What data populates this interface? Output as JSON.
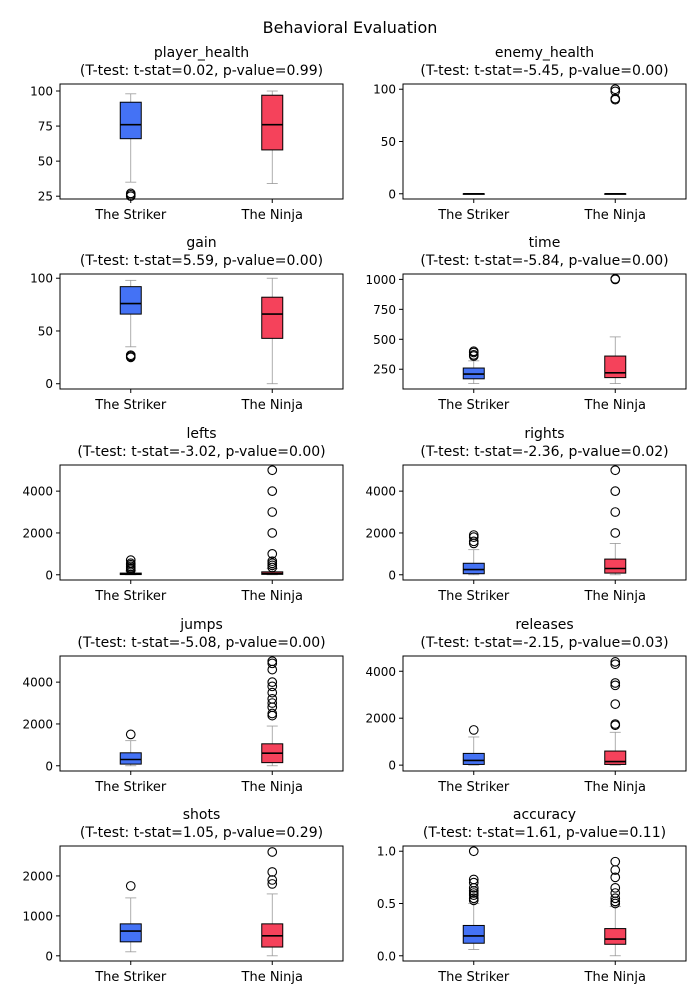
{
  "suptitle": "Behavioral Evaluation",
  "colors": {
    "striker": "#4472f5",
    "ninja": "#f5425b",
    "median": "#000000",
    "whisker": "#999999"
  },
  "chart_data": [
    {
      "type": "box",
      "title": "player_health",
      "subtitle": "(T-test: t-stat=0.02, p-value=0.99)",
      "categories": [
        "The Striker",
        "The Ninja"
      ],
      "ylim": [
        23,
        105
      ],
      "yticks": [
        25,
        50,
        75,
        100
      ],
      "boxes": [
        {
          "name": "The Striker",
          "whislo": 35,
          "q1": 66,
          "med": 76,
          "q3": 92,
          "whishi": 98,
          "fliers": [
            25,
            26,
            27
          ]
        },
        {
          "name": "The Ninja",
          "whislo": 34,
          "q1": 58,
          "med": 76,
          "q3": 97,
          "whishi": 100,
          "fliers": []
        }
      ]
    },
    {
      "type": "box",
      "title": "enemy_health",
      "subtitle": "(T-test: t-stat=-5.45, p-value=0.00)",
      "categories": [
        "The Striker",
        "The Ninja"
      ],
      "ylim": [
        -5,
        105
      ],
      "yticks": [
        0,
        50,
        100
      ],
      "boxes": [
        {
          "name": "The Striker",
          "whislo": 0,
          "q1": 0,
          "med": 0,
          "q3": 0,
          "whishi": 0,
          "fliers": []
        },
        {
          "name": "The Ninja",
          "whislo": 0,
          "q1": 0,
          "med": 0,
          "q3": 0,
          "whishi": 0,
          "fliers": [
            90,
            91,
            98,
            100
          ]
        }
      ]
    },
    {
      "type": "box",
      "title": "gain",
      "subtitle": "(T-test: t-stat=5.59, p-value=0.00)",
      "categories": [
        "The Striker",
        "The Ninja"
      ],
      "ylim": [
        -5,
        104
      ],
      "yticks": [
        0,
        50,
        100
      ],
      "boxes": [
        {
          "name": "The Striker",
          "whislo": 35,
          "q1": 66,
          "med": 76,
          "q3": 92,
          "whishi": 98,
          "fliers": [
            25,
            26,
            27
          ]
        },
        {
          "name": "The Ninja",
          "whislo": 0,
          "q1": 43,
          "med": 66,
          "q3": 82,
          "whishi": 100,
          "fliers": []
        }
      ]
    },
    {
      "type": "box",
      "title": "time",
      "subtitle": "(T-test: t-stat=-5.84, p-value=0.00)",
      "categories": [
        "The Striker",
        "The Ninja"
      ],
      "ylim": [
        85,
        1045
      ],
      "yticks": [
        250,
        500,
        750,
        1000
      ],
      "boxes": [
        {
          "name": "The Striker",
          "whislo": 130,
          "q1": 170,
          "med": 210,
          "q3": 260,
          "whishi": 320,
          "fliers": [
            360,
            370,
            390,
            400
          ]
        },
        {
          "name": "The Ninja",
          "whislo": 130,
          "q1": 180,
          "med": 220,
          "q3": 360,
          "whishi": 520,
          "fliers": [
            1000,
            1005
          ]
        }
      ]
    },
    {
      "type": "box",
      "title": "lefts",
      "subtitle": "(T-test: t-stat=-3.02, p-value=0.00)",
      "categories": [
        "The Striker",
        "The Ninja"
      ],
      "ylim": [
        -250,
        5250
      ],
      "yticks": [
        0,
        2000,
        4000
      ],
      "boxes": [
        {
          "name": "The Striker",
          "whislo": 0,
          "q1": 10,
          "med": 40,
          "q3": 80,
          "whishi": 180,
          "fliers": [
            220,
            280,
            330,
            400,
            480,
            550,
            700
          ]
        },
        {
          "name": "The Ninja",
          "whislo": 0,
          "q1": 20,
          "med": 60,
          "q3": 140,
          "whishi": 300,
          "fliers": [
            350,
            450,
            550,
            650,
            1000,
            2000,
            3000,
            4000,
            5000
          ]
        }
      ]
    },
    {
      "type": "box",
      "title": "rights",
      "subtitle": "(T-test: t-stat=-2.36, p-value=0.02)",
      "categories": [
        "The Striker",
        "The Ninja"
      ],
      "ylim": [
        -250,
        5250
      ],
      "yticks": [
        0,
        2000,
        4000
      ],
      "boxes": [
        {
          "name": "The Striker",
          "whislo": 0,
          "q1": 50,
          "med": 250,
          "q3": 550,
          "whishi": 1200,
          "fliers": [
            1500,
            1600,
            1800,
            1900
          ]
        },
        {
          "name": "The Ninja",
          "whislo": 0,
          "q1": 80,
          "med": 300,
          "q3": 750,
          "whishi": 1500,
          "fliers": [
            2000,
            3000,
            4000,
            5000
          ]
        }
      ]
    },
    {
      "type": "box",
      "title": "jumps",
      "subtitle": "(T-test: t-stat=-5.08, p-value=0.00)",
      "categories": [
        "The Striker",
        "The Ninja"
      ],
      "ylim": [
        -250,
        5250
      ],
      "yticks": [
        0,
        2000,
        4000
      ],
      "boxes": [
        {
          "name": "The Striker",
          "whislo": 0,
          "q1": 80,
          "med": 300,
          "q3": 620,
          "whishi": 1200,
          "fliers": [
            1500
          ]
        },
        {
          "name": "The Ninja",
          "whislo": 0,
          "q1": 150,
          "med": 600,
          "q3": 1050,
          "whishi": 1900,
          "fliers": [
            2400,
            2500,
            2800,
            3000,
            3200,
            3500,
            3800,
            4000,
            4600,
            4900,
            5000
          ]
        }
      ]
    },
    {
      "type": "box",
      "title": "releases",
      "subtitle": "(T-test: t-stat=-2.15, p-value=0.03)",
      "categories": [
        "The Striker",
        "The Ninja"
      ],
      "ylim": [
        -250,
        4650
      ],
      "yticks": [
        0,
        2000,
        4000
      ],
      "boxes": [
        {
          "name": "The Striker",
          "whislo": 0,
          "q1": 30,
          "med": 200,
          "q3": 500,
          "whishi": 1200,
          "fliers": [
            1500
          ]
        },
        {
          "name": "The Ninja",
          "whislo": 0,
          "q1": 30,
          "med": 150,
          "q3": 600,
          "whishi": 1400,
          "fliers": [
            1700,
            1750,
            2600,
            3400,
            3500,
            4300,
            4400
          ]
        }
      ]
    },
    {
      "type": "box",
      "title": "shots",
      "subtitle": "(T-test: t-stat=1.05, p-value=0.29)",
      "categories": [
        "The Striker",
        "The Ninja"
      ],
      "ylim": [
        -130,
        2750
      ],
      "yticks": [
        0,
        1000,
        2000
      ],
      "boxes": [
        {
          "name": "The Striker",
          "whislo": 100,
          "q1": 350,
          "med": 620,
          "q3": 800,
          "whishi": 1450,
          "fliers": [
            1750
          ]
        },
        {
          "name": "The Ninja",
          "whislo": 0,
          "q1": 220,
          "med": 500,
          "q3": 800,
          "whishi": 1550,
          "fliers": [
            1800,
            1900,
            2100,
            2600
          ]
        }
      ]
    },
    {
      "type": "box",
      "title": "accuracy",
      "subtitle": "(T-test: t-stat=1.61, p-value=0.11)",
      "categories": [
        "The Striker",
        "The Ninja"
      ],
      "ylim": [
        -0.05,
        1.05
      ],
      "yticks": [
        0.0,
        0.5,
        1.0
      ],
      "boxes": [
        {
          "name": "The Striker",
          "whislo": 0.06,
          "q1": 0.12,
          "med": 0.19,
          "q3": 0.29,
          "whishi": 0.5,
          "fliers": [
            0.53,
            0.55,
            0.58,
            0.6,
            0.62,
            0.65,
            0.7,
            0.73,
            1.0
          ]
        },
        {
          "name": "The Ninja",
          "whislo": 0.0,
          "q1": 0.11,
          "med": 0.16,
          "q3": 0.26,
          "whishi": 0.47,
          "fliers": [
            0.5,
            0.52,
            0.55,
            0.6,
            0.65,
            0.75,
            0.82,
            0.9
          ]
        }
      ]
    }
  ]
}
